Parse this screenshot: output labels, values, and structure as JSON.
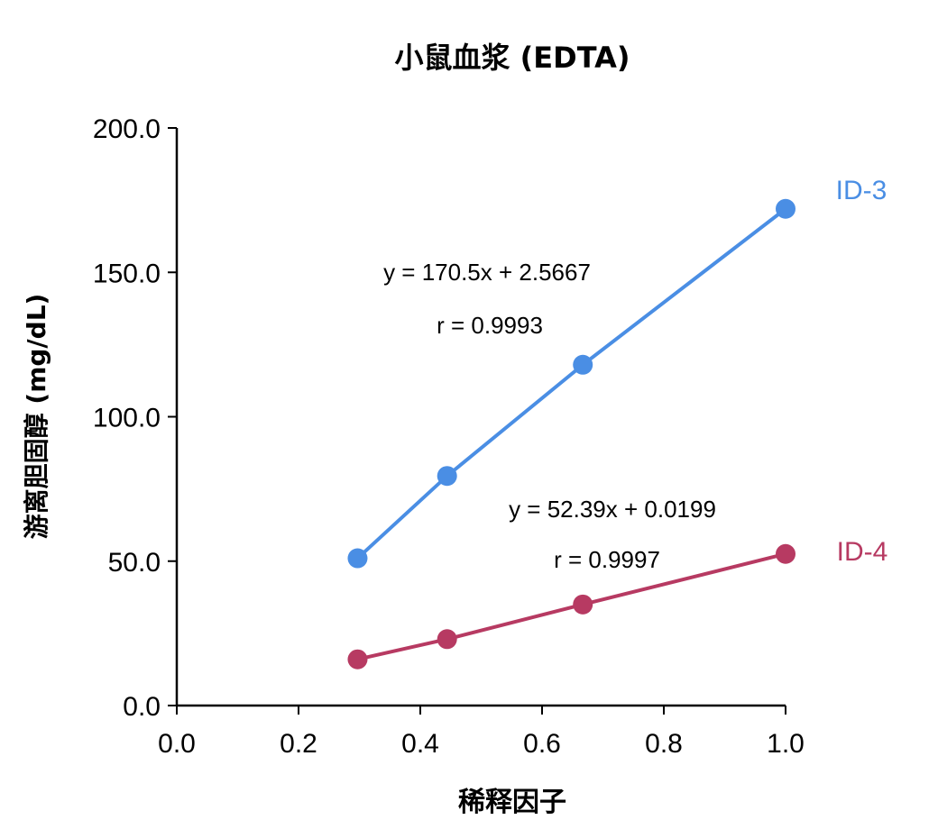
{
  "chart_data": {
    "type": "scatter",
    "title": "小鼠血浆 (EDTA)",
    "xlabel": "稀释因子",
    "ylabel": "游离胆固醇 (mg/dL)",
    "xlim": [
      0.0,
      1.0
    ],
    "ylim": [
      0.0,
      200.0
    ],
    "x_ticks": [
      0.0,
      0.2,
      0.4,
      0.6,
      0.8,
      1.0
    ],
    "x_tick_labels": [
      "0.0",
      "0.2",
      "0.4",
      "0.6",
      "0.8",
      "1.0"
    ],
    "y_ticks": [
      0.0,
      50.0,
      100.0,
      150.0,
      200.0
    ],
    "y_tick_labels": [
      "0.0",
      "50.0",
      "100.0",
      "150.0",
      "200.0"
    ],
    "grid": false,
    "series": [
      {
        "name": "ID-3",
        "color": "#4a8ee4",
        "x": [
          0.297,
          0.444,
          0.667,
          1.0
        ],
        "y": [
          51.0,
          79.5,
          118.0,
          172.0
        ],
        "fit": {
          "slope": 170.5,
          "intercept": 2.5667
        },
        "equation": "y = 170.5x + 2.5667",
        "r_text": "r = 0.9993"
      },
      {
        "name": "ID-4",
        "color": "#b73a62",
        "x": [
          0.297,
          0.444,
          0.667,
          1.0
        ],
        "y": [
          16.0,
          23.0,
          35.0,
          52.5
        ],
        "fit": {
          "slope": 52.39,
          "intercept": 0.0199
        },
        "equation": "y = 52.39x + 0.0199",
        "r_text": "r = 0.9997"
      }
    ]
  }
}
